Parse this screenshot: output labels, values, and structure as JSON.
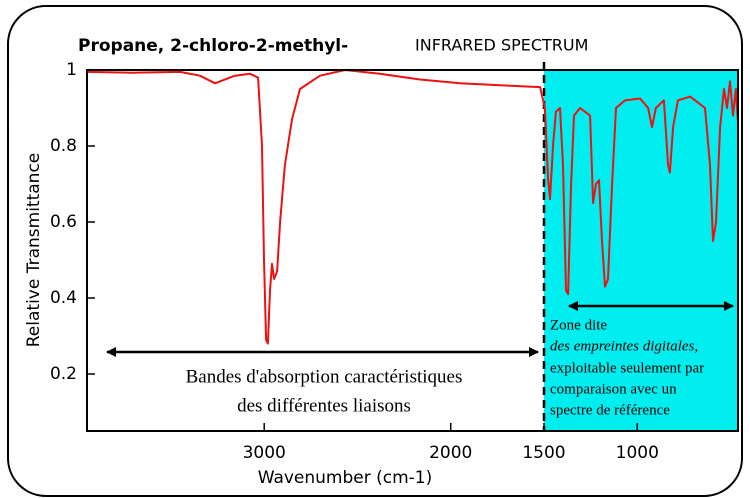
{
  "chart_data": {
    "type": "line",
    "title": "Propane, 2-chloro-2-methyl-",
    "subtitle": "INFRARED SPECTRUM",
    "x_label": "Wavenumber (cm-1)",
    "y_label": "Relative Transmittance",
    "x": [
      3950,
      3720,
      3451,
      3344,
      3264,
      3157,
      3076,
      3033,
      3012,
      3001,
      2990,
      2980,
      2969,
      2958,
      2947,
      2931,
      2915,
      2889,
      2851,
      2808,
      2701,
      2567,
      2379,
      2165,
      1950,
      1736,
      1521,
      1495,
      1479,
      1468,
      1452,
      1436,
      1414,
      1398,
      1382,
      1371,
      1355,
      1339,
      1307,
      1253,
      1237,
      1221,
      1205,
      1189,
      1173,
      1157,
      1135,
      1114,
      1066,
      985,
      942,
      921,
      900,
      857,
      835,
      825,
      808,
      782,
      717,
      637,
      610,
      594,
      578,
      556,
      535,
      519,
      503,
      487,
      471,
      460
    ],
    "values": [
      0.995,
      0.993,
      0.995,
      0.985,
      0.965,
      0.985,
      0.99,
      0.98,
      0.8,
      0.5,
      0.29,
      0.28,
      0.42,
      0.49,
      0.45,
      0.47,
      0.6,
      0.75,
      0.87,
      0.95,
      0.985,
      1.0,
      0.99,
      0.975,
      0.965,
      0.96,
      0.955,
      0.9,
      0.72,
      0.66,
      0.8,
      0.89,
      0.9,
      0.75,
      0.42,
      0.41,
      0.7,
      0.88,
      0.9,
      0.88,
      0.65,
      0.7,
      0.71,
      0.55,
      0.43,
      0.45,
      0.7,
      0.9,
      0.92,
      0.925,
      0.9,
      0.85,
      0.9,
      0.92,
      0.75,
      0.73,
      0.85,
      0.92,
      0.93,
      0.9,
      0.75,
      0.55,
      0.6,
      0.85,
      0.95,
      0.9,
      0.97,
      0.88,
      0.95,
      0.86
    ],
    "color": "#ee1111",
    "xlim": [
      3950,
      460
    ],
    "ylim": [
      0.05,
      1.0
    ],
    "xticks": [
      3000,
      2000,
      1500,
      1000
    ],
    "yticks": [
      1,
      0.8,
      0.6,
      0.4,
      0.2
    ],
    "highlight": {
      "from": 1500,
      "to": 460,
      "color": "#00eef0"
    },
    "annotations": {
      "left": [
        "Bandes d'absorption caractéristiques",
        "des différentes liaisons"
      ],
      "right": [
        "Zone dite",
        "des empreintes digitales,",
        "exploitable seulement par",
        "comparaison avec  un",
        "spectre de référence"
      ]
    }
  }
}
